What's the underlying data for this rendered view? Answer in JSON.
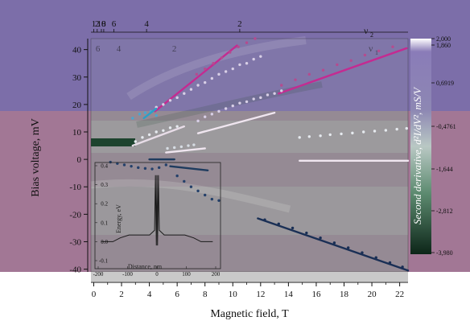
{
  "chart_data": {
    "type": "heatmap",
    "title": "",
    "xlabel": "Magnetic field, T",
    "ylabel": "Bias voltage, mV",
    "xlim": [
      -0.2,
      22.6
    ],
    "ylim": [
      -41,
      44
    ],
    "xticks": [
      0,
      2,
      4,
      6,
      8,
      10,
      12,
      14,
      16,
      18,
      20,
      22
    ],
    "yticks": [
      -40,
      -30,
      -20,
      -10,
      0,
      10,
      20,
      30,
      40
    ],
    "grid": false,
    "top_axis": {
      "label": "ν",
      "label_sub": "2",
      "ticks": [
        {
          "label": "1",
          "x": 0.0
        },
        {
          "label": "2",
          "x": 0.25
        },
        {
          "label": "10",
          "x": 0.55
        },
        {
          "label": "8",
          "x": 0.72
        },
        {
          "label": "6",
          "x": 1.45
        },
        {
          "label": "4",
          "x": 3.8
        },
        {
          "label": "2",
          "x": 10.5
        }
      ],
      "faint_ticks": [
        {
          "label": "6",
          "x": 0.3
        },
        {
          "label": "4",
          "x": 1.8
        },
        {
          "label": "2",
          "x": 5.8
        }
      ],
      "faint_label": "ν",
      "faint_label_sub": "1"
    },
    "colorbar": {
      "label": "Second derivative, d²I/dV², mS/V",
      "ticks": [
        "2,000",
        "1,860",
        "0,6919",
        "-0,4761",
        "-1,644",
        "-2,812",
        "-3,980"
      ],
      "colors": [
        "#ffffff",
        "#7b6cae",
        "#c9d6cf",
        "#5a8a6d",
        "#0d2a1a"
      ]
    },
    "bands": {
      "top_color": "#7c6ea9",
      "bottom_color": "#a27795",
      "split_y": 18.5
    },
    "series": [
      {
        "color": "#c42b91",
        "style": "line",
        "points": [
          [
            4.4,
            17.5
          ],
          [
            7.0,
            28.0
          ],
          [
            10.3,
            41.5
          ]
        ]
      },
      {
        "color": "#c42b91",
        "style": "line",
        "points": [
          [
            13.3,
            24.0
          ],
          [
            22.5,
            40.5
          ]
        ]
      },
      {
        "color": "#b54b8f",
        "style": "dots",
        "points": [
          [
            7.4,
            31.0
          ],
          [
            8.0,
            33.0
          ],
          [
            8.6,
            35.0
          ],
          [
            9.2,
            37.0
          ],
          [
            9.8,
            39.0
          ],
          [
            10.4,
            41.0
          ],
          [
            11.0,
            42.5
          ],
          [
            11.6,
            44.0
          ],
          [
            13.5,
            27.0
          ],
          [
            14.5,
            29.0
          ],
          [
            15.5,
            31.0
          ],
          [
            16.5,
            32.5
          ],
          [
            17.5,
            34.5
          ],
          [
            18.5,
            36.0
          ],
          [
            19.5,
            38.0
          ],
          [
            20.5,
            39.5
          ],
          [
            21.5,
            41.0
          ]
        ]
      },
      {
        "color": "#d8cfe6",
        "style": "dots",
        "points": [
          [
            4.5,
            19.0
          ],
          [
            5.0,
            20.0
          ],
          [
            5.5,
            21.5
          ],
          [
            6.0,
            22.5
          ],
          [
            6.5,
            24.0
          ],
          [
            7.0,
            25.5
          ],
          [
            7.5,
            27.0
          ],
          [
            8.0,
            28.0
          ],
          [
            8.5,
            29.5
          ],
          [
            9.0,
            31.0
          ],
          [
            9.5,
            32.0
          ],
          [
            10.0,
            33.0
          ],
          [
            10.5,
            34.5
          ],
          [
            11.0,
            35.0
          ],
          [
            11.5,
            36.5
          ],
          [
            12.0,
            37.5
          ],
          [
            7.5,
            14.0
          ],
          [
            8.0,
            15.5
          ],
          [
            8.5,
            16.5
          ],
          [
            9.0,
            17.5
          ],
          [
            9.5,
            18.5
          ],
          [
            10.0,
            19.5
          ],
          [
            10.5,
            20.5
          ],
          [
            11.0,
            21.0
          ],
          [
            11.5,
            22.0
          ],
          [
            12.0,
            22.5
          ],
          [
            12.5,
            23.5
          ],
          [
            13.0,
            24.0
          ],
          [
            13.5,
            25.0
          ]
        ]
      },
      {
        "color": "#4aa6cf",
        "style": "dots",
        "points": [
          [
            2.8,
            15.0
          ],
          [
            3.3,
            16.5
          ],
          [
            3.7,
            17.0
          ],
          [
            4.1,
            17.5
          ],
          [
            4.5,
            16.0
          ]
        ]
      },
      {
        "color": "#2aa0c8",
        "style": "line",
        "points": [
          [
            3.6,
            15.0
          ],
          [
            4.5,
            18.5
          ]
        ]
      },
      {
        "color": "#e6eaef",
        "style": "dots",
        "points": [
          [
            3.0,
            6.5
          ],
          [
            3.5,
            8.0
          ],
          [
            4.0,
            9.0
          ],
          [
            4.5,
            10.0
          ],
          [
            5.0,
            10.5
          ],
          [
            5.5,
            11.5
          ],
          [
            6.0,
            12.0
          ],
          [
            14.8,
            8.0
          ],
          [
            15.5,
            8.3
          ],
          [
            16.3,
            8.6
          ],
          [
            17.0,
            9.0
          ],
          [
            17.8,
            9.3
          ],
          [
            18.6,
            9.6
          ],
          [
            19.4,
            10.0
          ],
          [
            20.2,
            10.3
          ],
          [
            21.0,
            10.6
          ],
          [
            21.8,
            11.0
          ],
          [
            22.5,
            11.3
          ]
        ]
      },
      {
        "color": "#e8dde8",
        "style": "line",
        "points": [
          [
            2.8,
            5.0
          ],
          [
            6.5,
            12.0
          ]
        ]
      },
      {
        "color": "#f0e6f0",
        "style": "line",
        "points": [
          [
            7.5,
            9.5
          ],
          [
            13.0,
            17.0
          ]
        ]
      },
      {
        "color": "#f0e6f0",
        "style": "line",
        "points": [
          [
            5.2,
            2.5
          ],
          [
            8.0,
            4.0
          ]
        ]
      },
      {
        "color": "#f0e6f0",
        "style": "line",
        "points": [
          [
            14.8,
            -0.5
          ],
          [
            22.6,
            -0.5
          ]
        ]
      },
      {
        "color": "#d6dce3",
        "style": "dots",
        "points": [
          [
            5.3,
            4.0
          ],
          [
            5.8,
            4.3
          ],
          [
            6.3,
            4.6
          ],
          [
            6.8,
            5.0
          ],
          [
            7.2,
            5.3
          ]
        ]
      },
      {
        "color": "#1e3b5e",
        "style": "line",
        "points": [
          [
            4.0,
            0.0
          ],
          [
            5.8,
            0.0
          ]
        ]
      },
      {
        "color": "#1e3b5e",
        "style": "line",
        "points": [
          [
            5.5,
            -2.5
          ],
          [
            8.2,
            -4.0
          ]
        ]
      },
      {
        "color": "#24406a",
        "style": "dots",
        "points": [
          [
            1.2,
            -1.0
          ],
          [
            1.7,
            -1.5
          ],
          [
            2.2,
            -2.0
          ],
          [
            2.7,
            -2.5
          ],
          [
            3.2,
            -3.0
          ],
          [
            3.7,
            -3.3
          ],
          [
            4.2,
            -3.5
          ],
          [
            4.7,
            -3.0
          ],
          [
            5.2,
            -2.0
          ],
          [
            6.0,
            -6.0
          ],
          [
            6.5,
            -8.0
          ],
          [
            7.0,
            -10.0
          ],
          [
            7.5,
            -11.5
          ],
          [
            8.0,
            -13.0
          ],
          [
            8.5,
            -14.5
          ],
          [
            9.0,
            -15.0
          ]
        ]
      },
      {
        "color": "#1a2f55",
        "style": "line",
        "points": [
          [
            11.8,
            -21.5
          ],
          [
            22.6,
            -40.5
          ]
        ]
      },
      {
        "color": "#1a2f55",
        "style": "dots",
        "points": [
          [
            12.3,
            -22.0
          ],
          [
            13.3,
            -23.5
          ],
          [
            14.3,
            -25.0
          ],
          [
            15.3,
            -26.8
          ],
          [
            16.3,
            -28.6
          ],
          [
            17.3,
            -30.4
          ],
          [
            18.3,
            -32.2
          ],
          [
            19.3,
            -34.0
          ],
          [
            20.3,
            -35.8
          ],
          [
            21.3,
            -37.6
          ],
          [
            22.2,
            -39.2
          ]
        ]
      }
    ],
    "inset": {
      "xlabel": "Distance, nm",
      "ylabel": "Energy, eV",
      "xlim": [
        -200,
        200
      ],
      "ylim": [
        -0.1,
        0.4
      ],
      "xticks": [
        -200,
        -100,
        0,
        100,
        200
      ],
      "yticks": [
        -0.1,
        0.0,
        0.1,
        0.2,
        0.3,
        0.4
      ],
      "curve": [
        [
          -190,
          0.0
        ],
        [
          -150,
          0.0
        ],
        [
          -125,
          0.02
        ],
        [
          -95,
          0.035
        ],
        [
          -60,
          0.035
        ],
        [
          -25,
          0.035
        ],
        [
          -8,
          0.06
        ],
        [
          -5,
          0.35
        ],
        [
          -2,
          -0.02
        ],
        [
          0,
          0.35
        ],
        [
          2,
          -0.02
        ],
        [
          5,
          0.35
        ],
        [
          8,
          0.06
        ],
        [
          25,
          0.035
        ],
        [
          60,
          0.035
        ],
        [
          95,
          0.035
        ],
        [
          125,
          0.02
        ],
        [
          150,
          0.0
        ],
        [
          190,
          0.0
        ]
      ],
      "curve_color": "#1a1a1a"
    }
  }
}
